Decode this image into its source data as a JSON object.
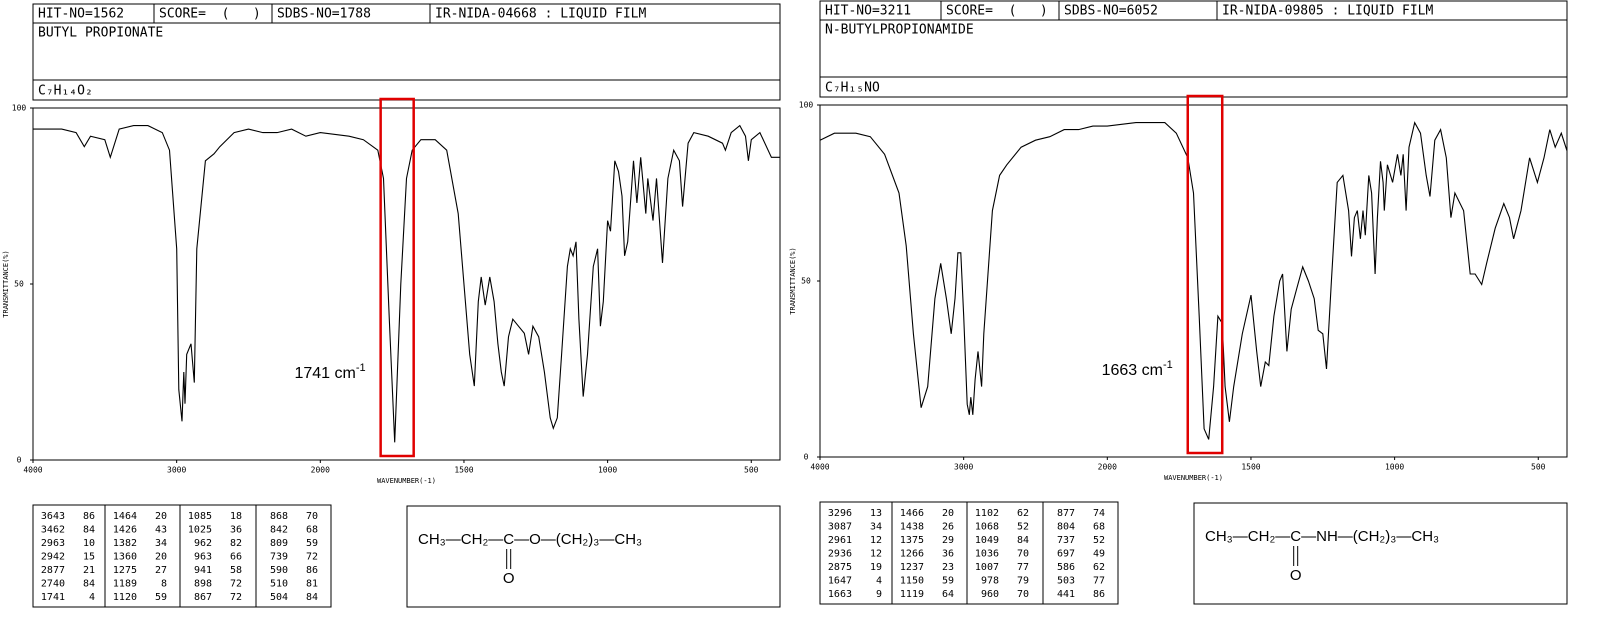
{
  "chart_data": [
    {
      "type": "line",
      "x_scale": "ticks-evenly-spaced",
      "color": "#000000",
      "highlight_color": "#e00000",
      "header": {
        "hit": "HIT-NO=1562",
        "score": "SCORE=  (   )",
        "sdbs": "SDBS-NO=1788",
        "method": "IR-NIDA-04668 : LIQUID FILM",
        "name": "BUTYL PROPIONATE",
        "formula": "C₇H₁₄O₂"
      },
      "xlabel": "WAVENUMBER(-1)",
      "ylabel": "TRANSMITTANCE(%)",
      "xlim": [
        4000,
        400
      ],
      "xticks": [
        4000,
        3000,
        2000,
        1500,
        1000,
        500
      ],
      "ylim": [
        0,
        100
      ],
      "yticks": [
        0,
        50,
        100
      ],
      "x": [
        4000,
        3800,
        3700,
        3643,
        3600,
        3500,
        3462,
        3400,
        3300,
        3200,
        3100,
        3050,
        3000,
        2985,
        2963,
        2950,
        2942,
        2930,
        2900,
        2877,
        2860,
        2800,
        2740,
        2700,
        2600,
        2500,
        2400,
        2300,
        2200,
        2100,
        2000,
        1900,
        1850,
        1800,
        1780,
        1760,
        1741,
        1720,
        1700,
        1680,
        1650,
        1600,
        1560,
        1520,
        1480,
        1464,
        1450,
        1440,
        1426,
        1410,
        1395,
        1382,
        1370,
        1360,
        1345,
        1330,
        1310,
        1290,
        1275,
        1260,
        1240,
        1220,
        1200,
        1189,
        1175,
        1160,
        1140,
        1130,
        1120,
        1110,
        1100,
        1085,
        1070,
        1050,
        1035,
        1025,
        1015,
        1000,
        990,
        975,
        962,
        950,
        941,
        930,
        910,
        898,
        885,
        867,
        860,
        842,
        830,
        809,
        790,
        770,
        750,
        739,
        720,
        700,
        650,
        600,
        590,
        570,
        540,
        520,
        510,
        500,
        470,
        430,
        400
      ],
      "values": [
        94,
        94,
        93,
        89,
        92,
        91,
        86,
        94,
        95,
        95,
        93,
        88,
        60,
        20,
        11,
        25,
        16,
        30,
        33,
        22,
        60,
        85,
        87,
        89,
        93,
        94,
        93,
        93,
        94,
        92,
        93,
        92,
        91,
        88,
        80,
        40,
        5,
        50,
        80,
        88,
        91,
        91,
        88,
        70,
        30,
        21,
        45,
        52,
        44,
        52,
        45,
        33,
        25,
        21,
        35,
        40,
        38,
        36,
        30,
        38,
        35,
        25,
        12,
        9,
        12,
        30,
        55,
        60,
        58,
        62,
        40,
        18,
        30,
        55,
        60,
        38,
        45,
        68,
        65,
        85,
        82,
        75,
        58,
        62,
        85,
        73,
        86,
        70,
        80,
        68,
        80,
        56,
        80,
        88,
        85,
        72,
        90,
        93,
        92,
        90,
        88,
        93,
        95,
        92,
        85,
        91,
        93,
        86,
        86
      ],
      "highlight": [
        1790,
        1675
      ],
      "annotation": {
        "text": "1741 cm",
        "sup": "-1"
      },
      "peak_table": [
        [
          [
            3643,
            86
          ],
          [
            3462,
            84
          ],
          [
            2963,
            10
          ],
          [
            2942,
            15
          ],
          [
            2877,
            21
          ],
          [
            2740,
            84
          ],
          [
            1741,
            4
          ]
        ],
        [
          [
            1464,
            20
          ],
          [
            1426,
            43
          ],
          [
            1382,
            34
          ],
          [
            1360,
            20
          ],
          [
            1275,
            27
          ],
          [
            1189,
            8
          ],
          [
            1120,
            59
          ]
        ],
        [
          [
            1085,
            18
          ],
          [
            1025,
            36
          ],
          [
            962,
            82
          ],
          [
            963,
            66
          ],
          [
            941,
            58
          ],
          [
            898,
            72
          ],
          [
            867,
            72
          ]
        ],
        [
          [
            868,
            70
          ],
          [
            842,
            68
          ],
          [
            809,
            59
          ],
          [
            739,
            72
          ],
          [
            590,
            86
          ],
          [
            510,
            81
          ],
          [
            504,
            84
          ]
        ]
      ],
      "structure": {
        "before": "CH₃—CH₂—",
        "center": "C",
        "after": "—O—(CH₂)₃—CH₃",
        "below": "O"
      }
    },
    {
      "type": "line",
      "x_scale": "ticks-evenly-spaced",
      "color": "#000000",
      "highlight_color": "#e00000",
      "header": {
        "hit": "HIT-NO=3211",
        "score": "SCORE=  (   )",
        "sdbs": "SDBS-NO=6052",
        "method": "IR-NIDA-09805 : LIQUID FILM",
        "name": "N-BUTYLPROPIONAMIDE",
        "formula": "C₇H₁₅NO"
      },
      "xlabel": "WAVENUMBER(-1)",
      "ylabel": "TRANSMITTANCE(%)",
      "xlim": [
        4000,
        400
      ],
      "xticks": [
        4000,
        3000,
        2000,
        1500,
        1000,
        500
      ],
      "ylim": [
        0,
        100
      ],
      "yticks": [
        0,
        50,
        100
      ],
      "x": [
        4000,
        3900,
        3750,
        3650,
        3550,
        3450,
        3400,
        3350,
        3296,
        3250,
        3200,
        3160,
        3120,
        3087,
        3060,
        3040,
        3020,
        3000,
        2975,
        2961,
        2950,
        2936,
        2920,
        2900,
        2875,
        2860,
        2800,
        2750,
        2700,
        2600,
        2500,
        2400,
        2300,
        2200,
        2100,
        2000,
        1900,
        1800,
        1760,
        1720,
        1700,
        1680,
        1663,
        1647,
        1630,
        1615,
        1600,
        1590,
        1575,
        1560,
        1530,
        1500,
        1480,
        1466,
        1450,
        1438,
        1420,
        1400,
        1390,
        1375,
        1360,
        1340,
        1320,
        1300,
        1280,
        1266,
        1250,
        1237,
        1220,
        1200,
        1180,
        1160,
        1150,
        1140,
        1130,
        1119,
        1110,
        1102,
        1090,
        1080,
        1068,
        1060,
        1049,
        1040,
        1036,
        1025,
        1007,
        990,
        978,
        970,
        960,
        950,
        930,
        910,
        890,
        877,
        860,
        840,
        820,
        804,
        790,
        760,
        737,
        720,
        697,
        680,
        650,
        620,
        600,
        586,
        560,
        530,
        503,
        480,
        460,
        441,
        420,
        400
      ],
      "values": [
        90,
        92,
        92,
        91,
        86,
        75,
        60,
        35,
        14,
        20,
        45,
        55,
        45,
        35,
        45,
        58,
        58,
        40,
        15,
        12,
        17,
        12,
        22,
        30,
        20,
        35,
        70,
        80,
        83,
        88,
        90,
        91,
        93,
        93,
        94,
        94,
        95,
        95,
        92,
        85,
        75,
        40,
        8,
        5,
        20,
        40,
        38,
        20,
        10,
        20,
        35,
        46,
        30,
        20,
        27,
        26,
        40,
        50,
        52,
        30,
        42,
        48,
        54,
        50,
        45,
        36,
        35,
        25,
        50,
        78,
        80,
        70,
        57,
        68,
        70,
        62,
        70,
        63,
        80,
        75,
        52,
        68,
        84,
        78,
        70,
        83,
        78,
        86,
        80,
        86,
        70,
        88,
        95,
        92,
        80,
        74,
        90,
        93,
        85,
        68,
        75,
        70,
        52,
        52,
        49,
        55,
        65,
        72,
        68,
        62,
        70,
        85,
        78,
        85,
        93,
        88,
        92,
        87
      ],
      "highlight": [
        1720,
        1600
      ],
      "annotation": {
        "text": "1663 cm",
        "sup": "-1"
      },
      "peak_table": [
        [
          [
            3296,
            13
          ],
          [
            3087,
            34
          ],
          [
            2961,
            12
          ],
          [
            2936,
            12
          ],
          [
            2875,
            19
          ],
          [
            1647,
            4
          ],
          [
            1663,
            9
          ]
        ],
        [
          [
            1466,
            20
          ],
          [
            1438,
            26
          ],
          [
            1375,
            29
          ],
          [
            1266,
            36
          ],
          [
            1237,
            23
          ],
          [
            1150,
            59
          ],
          [
            1119,
            64
          ]
        ],
        [
          [
            1102,
            62
          ],
          [
            1068,
            52
          ],
          [
            1049,
            84
          ],
          [
            1036,
            70
          ],
          [
            1007,
            77
          ],
          [
            978,
            79
          ],
          [
            960,
            70
          ]
        ],
        [
          [
            877,
            74
          ],
          [
            804,
            68
          ],
          [
            737,
            52
          ],
          [
            697,
            49
          ],
          [
            586,
            62
          ],
          [
            503,
            77
          ],
          [
            441,
            86
          ]
        ]
      ],
      "structure": {
        "before": "CH₃—CH₂—",
        "center": "C",
        "after": "—NH—(CH₂)₃—CH₃",
        "below": "O"
      }
    }
  ]
}
